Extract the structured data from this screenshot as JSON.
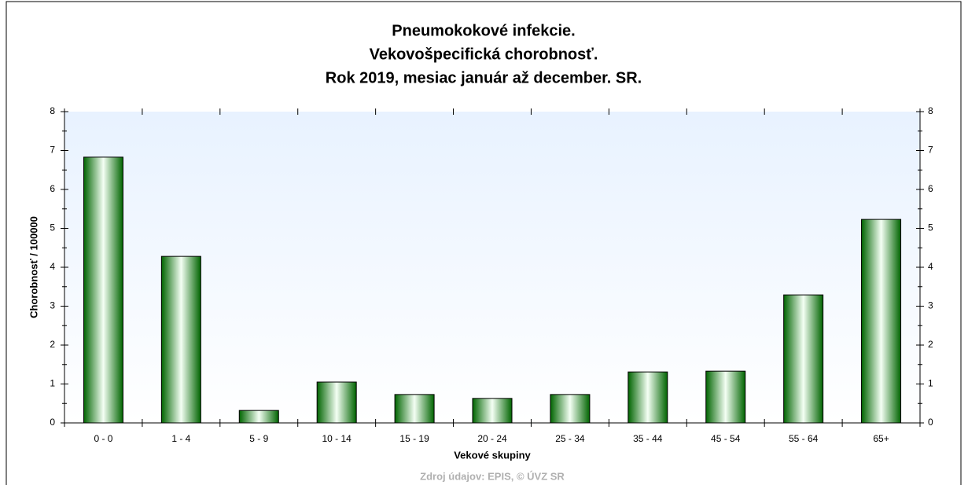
{
  "chart_data": {
    "type": "bar",
    "title": [
      "Pneumokokové infekcie.",
      "Vekovošpecifická chorobnosť.",
      "Rok 2019, mesiac január až december. SR."
    ],
    "x_label": "Vekové skupiny",
    "y_label": "Chorobnosť / 100000",
    "source": "Zdroj údajov: EPIS, © ÚVZ SR",
    "categories": [
      "0 - 0",
      "1 - 4",
      "5 - 9",
      "10 - 14",
      "15 - 19",
      "20 - 24",
      "25 - 34",
      "35 - 44",
      "45 - 54",
      "55 - 64",
      "65+"
    ],
    "values": [
      6.83,
      4.28,
      0.32,
      1.05,
      0.73,
      0.63,
      0.73,
      1.31,
      1.33,
      3.29,
      5.23
    ],
    "color": "#008000",
    "ylim": [
      0,
      8
    ],
    "yticks": [
      0,
      1,
      2,
      3,
      4,
      5,
      6,
      7,
      8
    ],
    "y2lim": [
      0,
      8
    ],
    "y2ticks": [
      0,
      1,
      2,
      3,
      4,
      5,
      6,
      7,
      8
    ]
  }
}
